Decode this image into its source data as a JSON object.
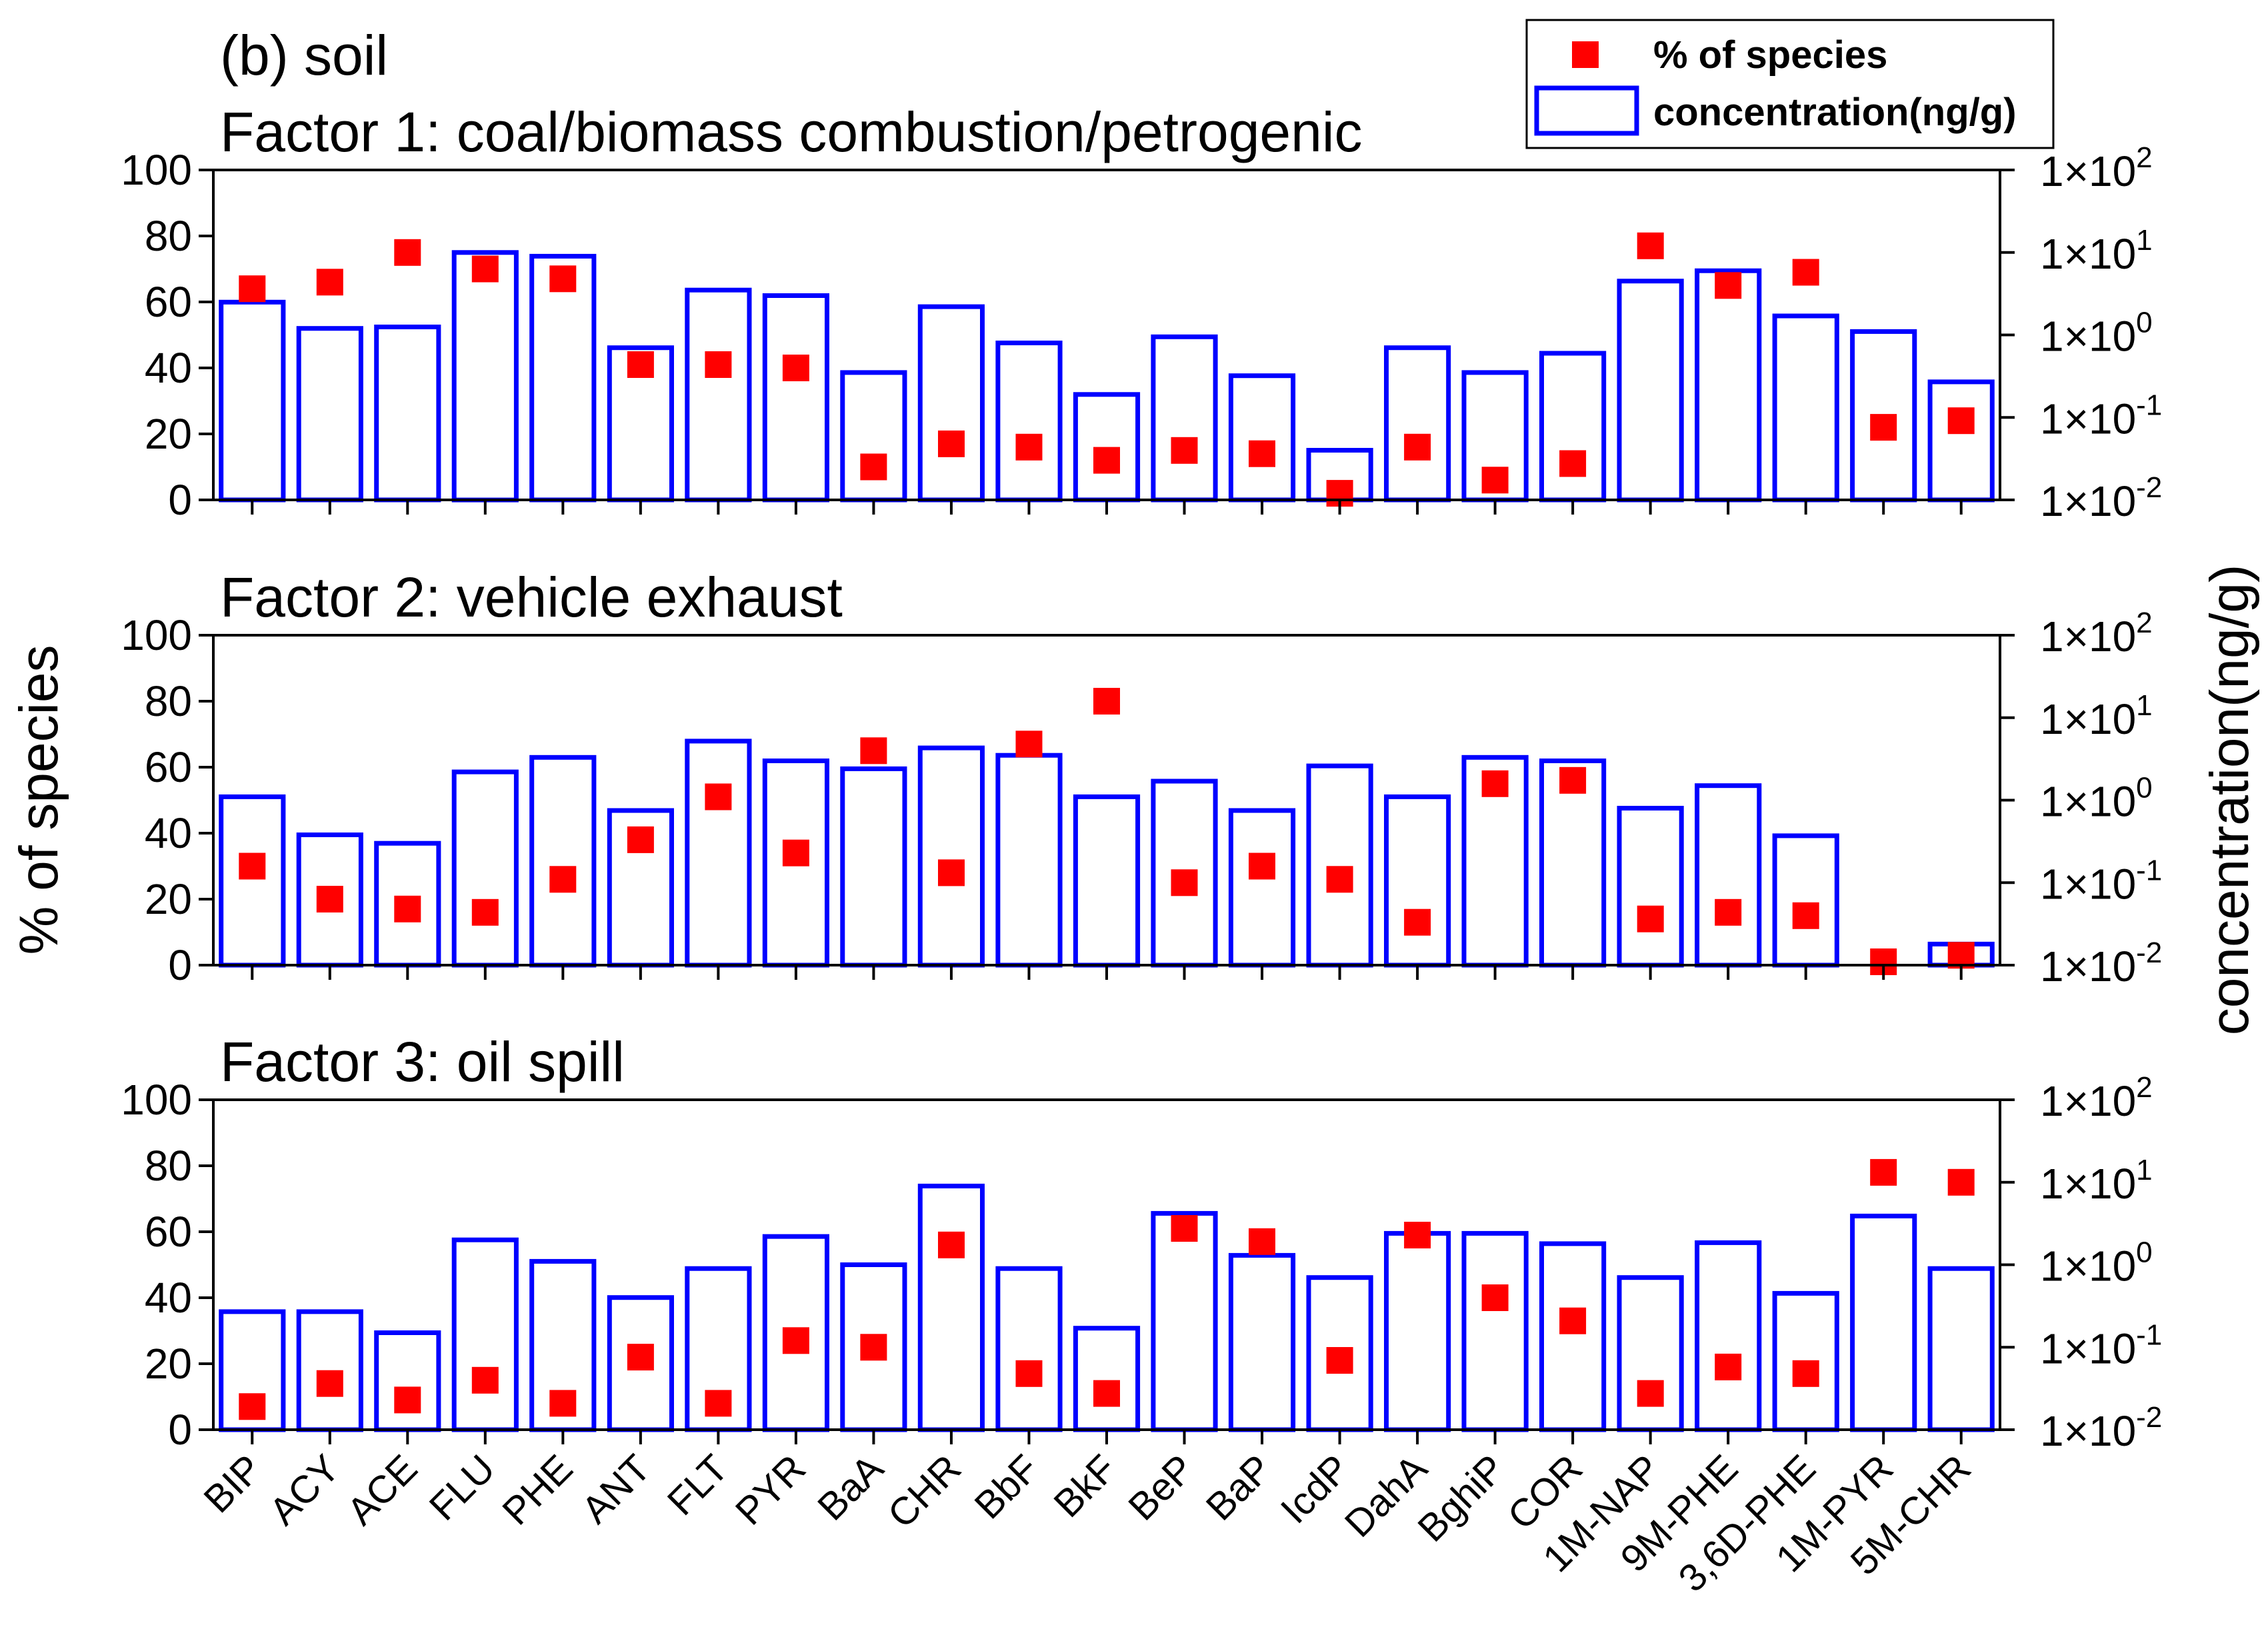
{
  "chart_data": {
    "type": "bar",
    "panel_label": "(b) soil",
    "categories": [
      "BIP",
      "ACY",
      "ACE",
      "FLU",
      "PHE",
      "ANT",
      "FLT",
      "PYR",
      "BaA",
      "CHR",
      "BbF",
      "BkF",
      "BeP",
      "BaP",
      "IcdP",
      "DahA",
      "BghiP",
      "COR",
      "1M-NAP",
      "9M-PHE",
      "3,6D-PHE",
      "1M-PYR",
      "5M-CHR"
    ],
    "ylabel_left": "% of species",
    "ylabel_right": "concentration(ng/g)",
    "ylim_left": [
      0,
      100
    ],
    "ylim_right_log10": [
      -2,
      2
    ],
    "left_ticks": [
      "0",
      "20",
      "40",
      "60",
      "80",
      "100"
    ],
    "right_ticks": [
      {
        "base": "1×10",
        "exp": "-2"
      },
      {
        "base": "1×10",
        "exp": "-1"
      },
      {
        "base": "1×10",
        "exp": "0"
      },
      {
        "base": "1×10",
        "exp": "1"
      },
      {
        "base": "1×10",
        "exp": "2"
      }
    ],
    "legend": {
      "position": "top-right",
      "percent_label": "% of species",
      "concentration_label": "concentration(ng/g)"
    },
    "colors": {
      "bar_edge": "#0000ff",
      "marker": "#ff0000",
      "axis": "#000000"
    },
    "panels": [
      {
        "title": "Factor 1: coal/biomass combustion/petrogenic",
        "series": [
          {
            "name": "concentration(ng/g)",
            "kind": "bar",
            "values": [
              2.5,
              1.2,
              1.25,
              10,
              9,
              0.7,
              3.5,
              3,
              0.35,
              2.2,
              0.8,
              0.19,
              0.95,
              0.32,
              0.04,
              0.7,
              0.35,
              0.6,
              4.5,
              6,
              1.7,
              1.1,
              0.27
            ]
          },
          {
            "name": "% of species",
            "kind": "marker",
            "values": [
              64,
              66,
              75,
              70,
              67,
              41,
              41,
              40,
              10,
              17,
              16,
              12,
              15,
              14,
              2,
              16,
              6,
              11,
              77,
              65,
              69,
              22,
              24
            ]
          }
        ]
      },
      {
        "title": "Factor 2: vehicle exhaust",
        "series": [
          {
            "name": "concentration(ng/g)",
            "kind": "bar",
            "values": [
              1.1,
              0.38,
              0.3,
              2.2,
              3.3,
              0.75,
              5.2,
              3,
              2.4,
              4.3,
              3.5,
              1.1,
              1.7,
              0.75,
              2.6,
              1.1,
              3.3,
              3,
              0.8,
              1.5,
              0.37,
              0.01,
              0.018
            ]
          },
          {
            "name": "% of species",
            "kind": "marker",
            "values": [
              30,
              20,
              17,
              16,
              26,
              38,
              51,
              34,
              65,
              28,
              67,
              80,
              25,
              30,
              26,
              13,
              55,
              56,
              14,
              16,
              15,
              1,
              3
            ]
          }
        ]
      },
      {
        "title": "Factor 3: oil spill",
        "series": [
          {
            "name": "concentration(ng/g)",
            "kind": "bar",
            "values": [
              0.27,
              0.27,
              0.15,
              2,
              1.1,
              0.4,
              0.9,
              2.2,
              1,
              9,
              0.9,
              0.17,
              4.2,
              1.3,
              0.7,
              2.4,
              2.4,
              1.8,
              0.7,
              1.85,
              0.45,
              3.9,
              0.9
            ]
          },
          {
            "name": "% of species",
            "kind": "marker",
            "values": [
              7,
              14,
              9,
              15,
              8,
              22,
              8,
              27,
              25,
              56,
              17,
              11,
              61,
              57,
              21,
              59,
              40,
              33,
              11,
              19,
              17,
              78,
              75
            ]
          }
        ]
      }
    ]
  }
}
